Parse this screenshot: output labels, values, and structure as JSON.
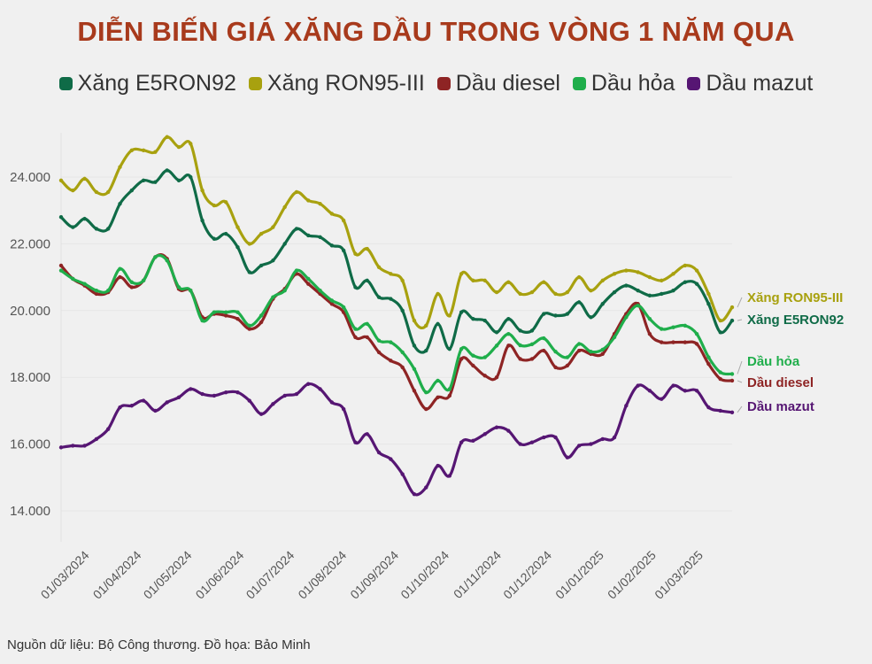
{
  "chart_data": {
    "type": "line",
    "title": "DIỄN BIẾN GIÁ XĂNG DẦU TRONG VÒNG 1 NĂM QUA",
    "xlabel": "",
    "ylabel": "",
    "ylim": [
      13000,
      25500
    ],
    "yticks": [
      14000,
      16000,
      18000,
      20000,
      22000,
      24000
    ],
    "ytick_labels": [
      "14.000",
      "16.000",
      "18.000",
      "20.000",
      "22.000",
      "24.000"
    ],
    "x_start": "2024-02-15",
    "x_step_days": 7,
    "xticks": [
      "2024-03-01",
      "2024-04-01",
      "2024-05-01",
      "2024-06-01",
      "2024-07-01",
      "2024-08-01",
      "2024-09-01",
      "2024-10-01",
      "2024-11-01",
      "2024-12-01",
      "2025-01-01",
      "2025-02-01",
      "2025-03-01"
    ],
    "xtick_labels": [
      "01/03/2024",
      "01/04/2024",
      "01/05/2024",
      "01/06/2024",
      "01/07/2024",
      "01/08/2024",
      "01/09/2024",
      "01/10/2024",
      "01/11/2024",
      "01/12/2024",
      "01/01/2025",
      "01/02/2025",
      "01/03/2025"
    ],
    "grid": true,
    "legend_position": "top",
    "series": [
      {
        "name": "Xăng E5RON92",
        "end_label": "Xăng E5RON92",
        "color": "#0f6b47",
        "values": [
          22800,
          22500,
          22750,
          22450,
          22450,
          23200,
          23600,
          23900,
          23850,
          24200,
          23900,
          24000,
          22700,
          22150,
          22300,
          21900,
          21150,
          21350,
          21500,
          22000,
          22450,
          22250,
          22200,
          21950,
          21800,
          20700,
          20900,
          20400,
          20350,
          20000,
          18950,
          18800,
          19600,
          18850,
          19950,
          19750,
          19700,
          19350,
          19750,
          19400,
          19400,
          19900,
          19850,
          19900,
          20250,
          19800,
          20200,
          20550,
          20750,
          20600,
          20450,
          20500,
          20600,
          20850,
          20800,
          20200,
          19350,
          19700
        ]
      },
      {
        "name": "Xăng RON95-III",
        "end_label": "Xăng RON95-III",
        "color": "#a8a10f",
        "values": [
          23900,
          23600,
          23950,
          23550,
          23550,
          24300,
          24800,
          24800,
          24750,
          25200,
          24900,
          25000,
          23600,
          23150,
          23250,
          22500,
          22000,
          22300,
          22500,
          23100,
          23550,
          23300,
          23200,
          22900,
          22700,
          21700,
          21850,
          21300,
          21100,
          20900,
          19700,
          19550,
          20500,
          19850,
          21100,
          20900,
          20900,
          20550,
          20850,
          20500,
          20550,
          20850,
          20500,
          20550,
          21000,
          20600,
          20900,
          21100,
          21200,
          21150,
          21000,
          20900,
          21100,
          21350,
          21200,
          20500,
          19700,
          20100
        ]
      },
      {
        "name": "Dầu diesel",
        "end_label": "Dầu diesel",
        "color": "#8e2424",
        "values": [
          21350,
          20950,
          20750,
          20500,
          20550,
          21000,
          20700,
          20900,
          21600,
          21550,
          20650,
          20600,
          19800,
          19900,
          19850,
          19750,
          19450,
          19650,
          20350,
          20650,
          21100,
          20800,
          20500,
          20200,
          19950,
          19200,
          19200,
          18750,
          18500,
          18300,
          17600,
          17050,
          17400,
          17450,
          18550,
          18350,
          18050,
          18000,
          18950,
          18550,
          18550,
          18800,
          18300,
          18350,
          18800,
          18700,
          18700,
          19300,
          19900,
          20200,
          19300,
          19050,
          19050,
          19050,
          19000,
          18400,
          17950,
          17900
        ]
      },
      {
        "name": "Dầu hỏa",
        "end_label": "Dầu hỏa",
        "color": "#1fae4b",
        "values": [
          21200,
          20950,
          20800,
          20600,
          20600,
          21250,
          20850,
          20900,
          21600,
          21500,
          20700,
          20600,
          19700,
          19950,
          19950,
          19950,
          19550,
          19850,
          20400,
          20600,
          21200,
          20950,
          20600,
          20300,
          20100,
          19450,
          19600,
          19100,
          19050,
          18750,
          18250,
          17550,
          17900,
          17650,
          18850,
          18650,
          18600,
          18950,
          19300,
          18960,
          18990,
          19170,
          18770,
          18600,
          19000,
          18770,
          18830,
          19200,
          19800,
          20150,
          19750,
          19450,
          19500,
          19550,
          19300,
          18600,
          18150,
          18100
        ]
      },
      {
        "name": "Dầu mazut",
        "end_label": "Dầu mazut",
        "color": "#561673",
        "values": [
          15900,
          15950,
          15950,
          16150,
          16450,
          17100,
          17150,
          17300,
          17000,
          17250,
          17400,
          17650,
          17500,
          17450,
          17550,
          17550,
          17300,
          16900,
          17200,
          17450,
          17500,
          17800,
          17650,
          17250,
          17050,
          16050,
          16300,
          15750,
          15550,
          15100,
          14500,
          14700,
          15350,
          15050,
          16050,
          16100,
          16300,
          16500,
          16400,
          16000,
          16050,
          16200,
          16200,
          15600,
          15950,
          16000,
          16150,
          16200,
          17150,
          17750,
          17600,
          17350,
          17750,
          17600,
          17600,
          17100,
          17000,
          16950
        ]
      }
    ]
  },
  "footer": "Nguồn dữ liệu: Bộ Công thương. Đồ họa: Bảo Minh"
}
